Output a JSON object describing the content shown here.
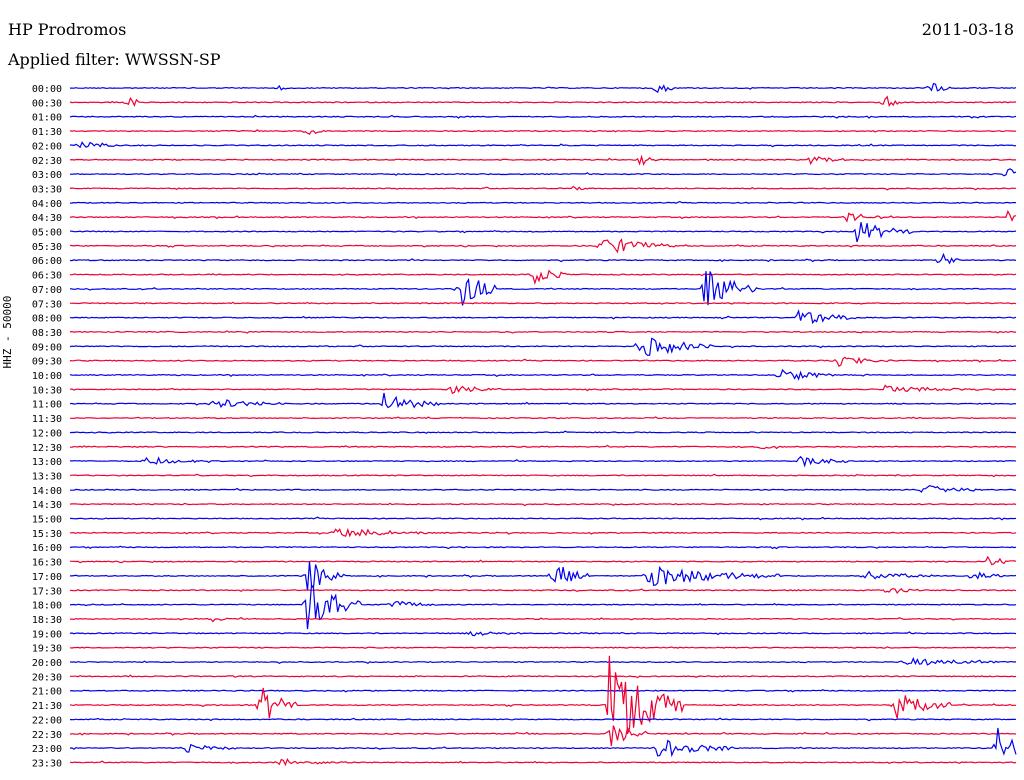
{
  "header": {
    "station": "HP Prodromos",
    "date": "2011-03-18",
    "filter_label": "Applied filter: WWSSN-SP"
  },
  "colors": {
    "even_hour": "#0000ee",
    "half_hour": "#ee0033",
    "background": "#ffffff"
  },
  "chart_data": {
    "type": "line",
    "title": "HP Prodromos",
    "ylabel": "HHZ - 50000",
    "y_tick_labels": [
      "00:00",
      "00:30",
      "01:00",
      "01:30",
      "02:00",
      "02:30",
      "03:00",
      "03:30",
      "04:00",
      "04:30",
      "05:00",
      "05:30",
      "06:00",
      "06:30",
      "07:00",
      "07:30",
      "08:00",
      "08:30",
      "09:00",
      "09:30",
      "10:00",
      "10:30",
      "11:00",
      "11:30",
      "12:00",
      "12:30",
      "13:00",
      "13:30",
      "14:00",
      "14:30",
      "15:00",
      "15:30",
      "16:00",
      "16:30",
      "17:00",
      "17:30",
      "18:00",
      "18:30",
      "19:00",
      "19:30",
      "20:00",
      "20:30",
      "21:00",
      "21:30",
      "22:00",
      "22:30",
      "23:00",
      "23:30"
    ],
    "trace_minutes": 30,
    "series_color_order": [
      "blue",
      "red"
    ],
    "events": [
      {
        "t": "00:00",
        "pos": 0.22,
        "amp": 0.3,
        "dur": 0.01
      },
      {
        "t": "00:00",
        "pos": 0.62,
        "amp": 0.9,
        "dur": 0.01
      },
      {
        "t": "00:00",
        "pos": 0.91,
        "amp": 0.7,
        "dur": 0.01
      },
      {
        "t": "00:30",
        "pos": 0.06,
        "amp": 0.7,
        "dur": 0.01
      },
      {
        "t": "00:30",
        "pos": 0.86,
        "amp": 0.9,
        "dur": 0.01
      },
      {
        "t": "01:30",
        "pos": 0.25,
        "amp": 0.6,
        "dur": 0.01
      },
      {
        "t": "02:00",
        "pos": 0.01,
        "amp": 0.5,
        "dur": 0.02
      },
      {
        "t": "02:30",
        "pos": 0.6,
        "amp": 0.8,
        "dur": 0.01
      },
      {
        "t": "02:30",
        "pos": 0.78,
        "amp": 0.4,
        "dur": 0.03
      },
      {
        "t": "03:00",
        "pos": 0.99,
        "amp": 0.8,
        "dur": 0.01
      },
      {
        "t": "03:30",
        "pos": 0.53,
        "amp": 0.4,
        "dur": 0.01
      },
      {
        "t": "04:30",
        "pos": 0.82,
        "amp": 0.5,
        "dur": 0.03
      },
      {
        "t": "04:30",
        "pos": 0.99,
        "amp": 0.8,
        "dur": 0.01
      },
      {
        "t": "05:00",
        "pos": 0.83,
        "amp": 1.2,
        "dur": 0.03
      },
      {
        "t": "05:30",
        "pos": 0.56,
        "amp": 1.1,
        "dur": 0.04
      },
      {
        "t": "06:00",
        "pos": 0.92,
        "amp": 1.1,
        "dur": 0.01
      },
      {
        "t": "06:30",
        "pos": 0.49,
        "amp": 1.0,
        "dur": 0.02
      },
      {
        "t": "07:00",
        "pos": 0.41,
        "amp": 2.4,
        "dur": 0.02
      },
      {
        "t": "07:00",
        "pos": 0.67,
        "amp": 2.2,
        "dur": 0.03
      },
      {
        "t": "08:00",
        "pos": 0.77,
        "amp": 1.1,
        "dur": 0.03
      },
      {
        "t": "09:00",
        "pos": 0.6,
        "amp": 1.3,
        "dur": 0.04
      },
      {
        "t": "09:30",
        "pos": 0.81,
        "amp": 0.6,
        "dur": 0.03
      },
      {
        "t": "10:00",
        "pos": 0.75,
        "amp": 0.8,
        "dur": 0.03
      },
      {
        "t": "10:30",
        "pos": 0.4,
        "amp": 0.5,
        "dur": 0.03
      },
      {
        "t": "10:30",
        "pos": 0.86,
        "amp": 0.4,
        "dur": 0.05
      },
      {
        "t": "11:00",
        "pos": 0.15,
        "amp": 0.6,
        "dur": 0.04
      },
      {
        "t": "11:00",
        "pos": 0.33,
        "amp": 1.2,
        "dur": 0.03
      },
      {
        "t": "12:30",
        "pos": 0.73,
        "amp": 0.8,
        "dur": 0.01
      },
      {
        "t": "13:00",
        "pos": 0.08,
        "amp": 0.5,
        "dur": 0.03
      },
      {
        "t": "13:00",
        "pos": 0.77,
        "amp": 0.6,
        "dur": 0.03
      },
      {
        "t": "14:00",
        "pos": 0.9,
        "amp": 0.6,
        "dur": 0.03
      },
      {
        "t": "15:30",
        "pos": 0.28,
        "amp": 0.6,
        "dur": 0.05
      },
      {
        "t": "16:30",
        "pos": 0.97,
        "amp": 0.5,
        "dur": 0.03
      },
      {
        "t": "17:00",
        "pos": 0.25,
        "amp": 2.0,
        "dur": 0.02
      },
      {
        "t": "17:00",
        "pos": 0.51,
        "amp": 1.8,
        "dur": 0.02
      },
      {
        "t": "17:00",
        "pos": 0.61,
        "amp": 1.1,
        "dur": 0.07
      },
      {
        "t": "17:00",
        "pos": 0.84,
        "amp": 0.5,
        "dur": 0.04
      },
      {
        "t": "17:00",
        "pos": 0.95,
        "amp": 0.5,
        "dur": 0.02
      },
      {
        "t": "17:30",
        "pos": 0.86,
        "amp": 0.6,
        "dur": 0.02
      },
      {
        "t": "18:00",
        "pos": 0.25,
        "amp": 2.6,
        "dur": 0.03
      },
      {
        "t": "18:00",
        "pos": 0.34,
        "amp": 0.6,
        "dur": 0.02
      },
      {
        "t": "18:30",
        "pos": 0.15,
        "amp": 0.6,
        "dur": 0.01
      },
      {
        "t": "19:00",
        "pos": 0.42,
        "amp": 0.3,
        "dur": 0.03
      },
      {
        "t": "20:00",
        "pos": 0.88,
        "amp": 0.5,
        "dur": 0.05
      },
      {
        "t": "21:30",
        "pos": 0.2,
        "amp": 2.2,
        "dur": 0.02
      },
      {
        "t": "21:30",
        "pos": 0.57,
        "amp": 5.0,
        "dur": 0.04
      },
      {
        "t": "21:30",
        "pos": 0.87,
        "amp": 2.0,
        "dur": 0.03
      },
      {
        "t": "22:30",
        "pos": 0.57,
        "amp": 1.5,
        "dur": 0.02
      },
      {
        "t": "23:00",
        "pos": 0.12,
        "amp": 0.5,
        "dur": 0.03
      },
      {
        "t": "23:00",
        "pos": 0.62,
        "amp": 1.0,
        "dur": 0.04
      },
      {
        "t": "23:00",
        "pos": 0.66,
        "amp": 0.4,
        "dur": 0.02
      },
      {
        "t": "23:00",
        "pos": 0.98,
        "amp": 2.2,
        "dur": 0.02
      },
      {
        "t": "23:30",
        "pos": 0.22,
        "amp": 0.4,
        "dur": 0.04
      }
    ]
  }
}
